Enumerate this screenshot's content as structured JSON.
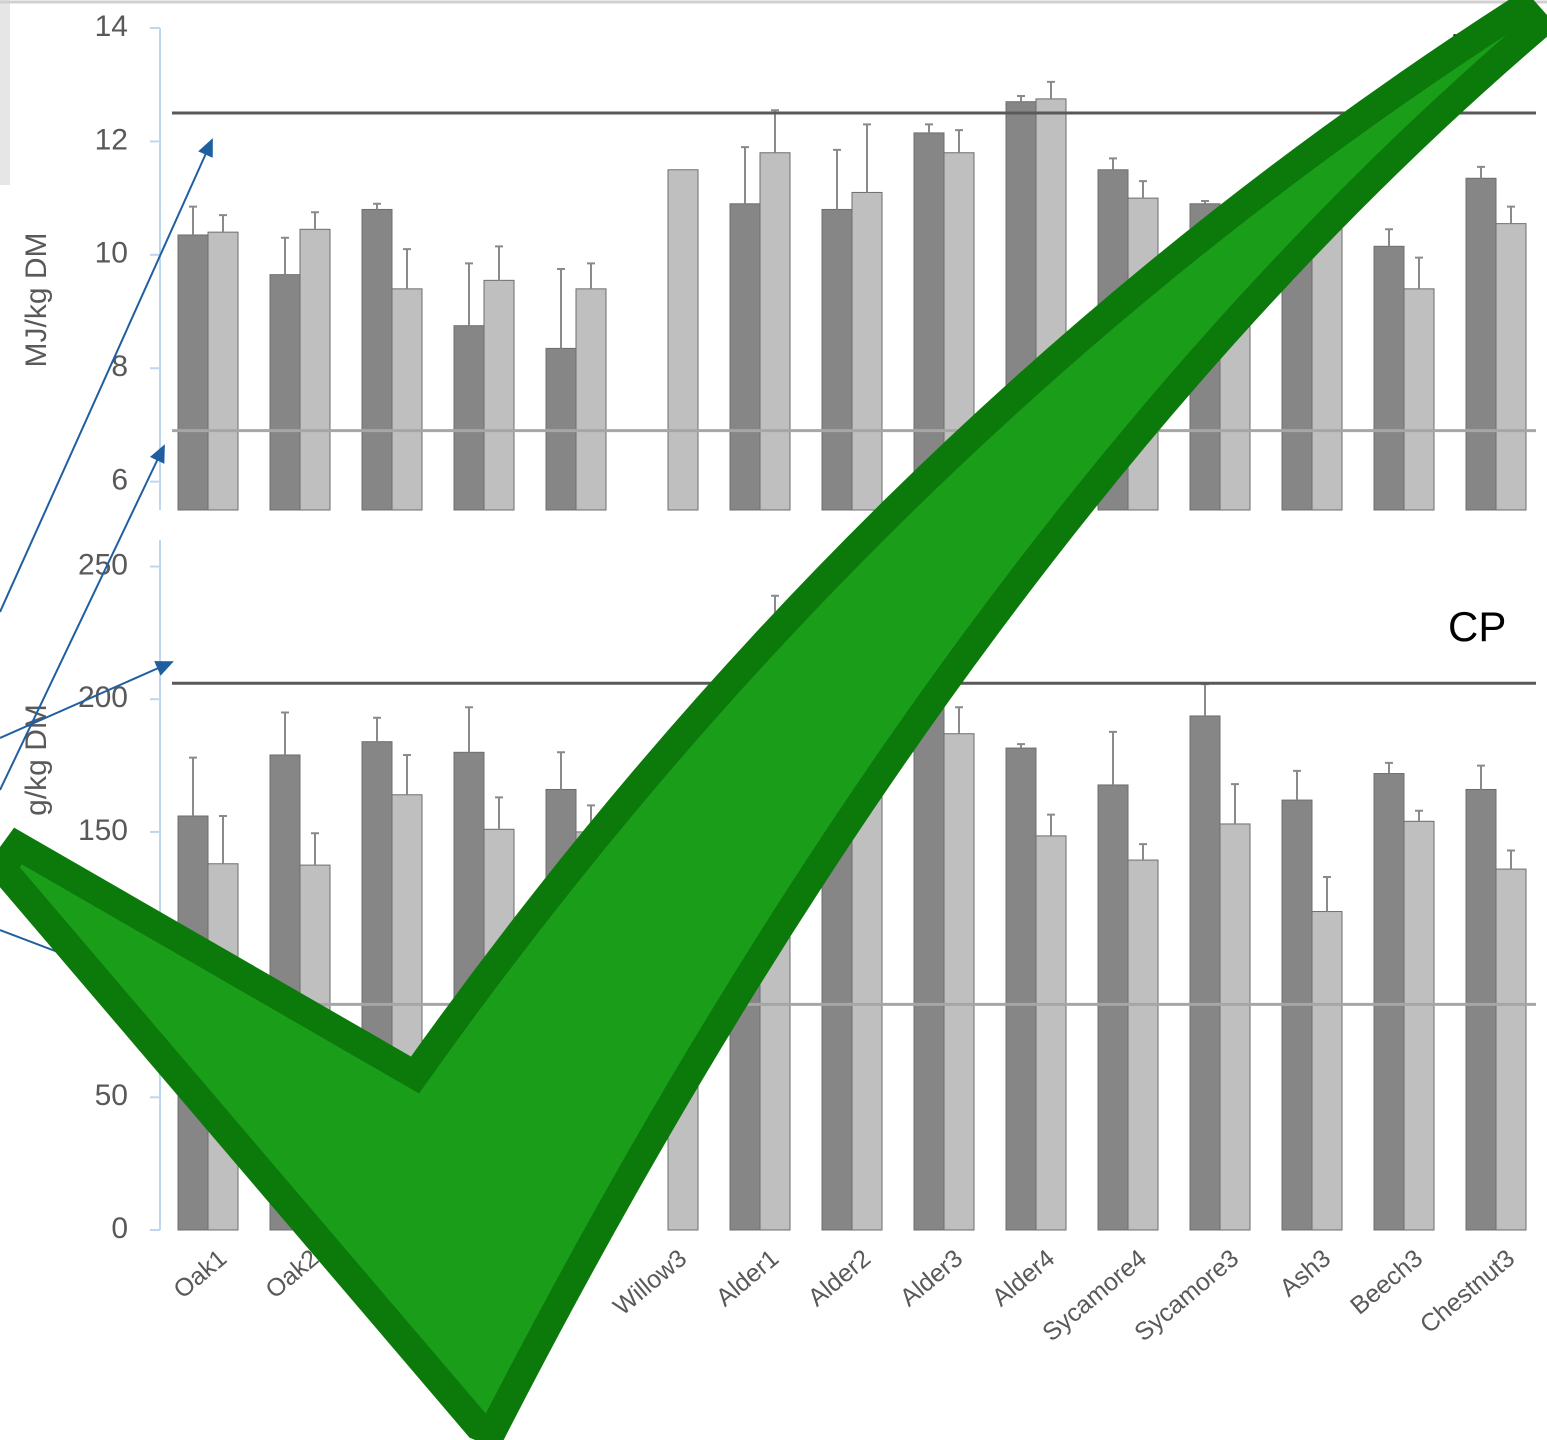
{
  "chart_data": [
    {
      "type": "bar",
      "title": "ME",
      "y_label": "MJ/kg DM",
      "ylim": [
        5.5,
        14
      ],
      "yticks": [
        6,
        8,
        10,
        12,
        14
      ],
      "hlines": [
        {
          "value": 12.5,
          "color": "#595959"
        },
        {
          "value": 6.9,
          "color": "#a6a6a6"
        }
      ],
      "series": [
        {
          "color": "#868686",
          "values": [
            10.35,
            9.65,
            10.8,
            8.75,
            8.35,
            null,
            10.9,
            10.8,
            12.15,
            12.7,
            11.5,
            10.9,
            10.7,
            10.15,
            11.35
          ],
          "errors": [
            0.5,
            0.65,
            0.1,
            1.1,
            1.4,
            null,
            1.0,
            1.05,
            0.15,
            0.1,
            0.2,
            0.05,
            0.3,
            0.3,
            0.2
          ]
        },
        {
          "color": "#bfbfbf",
          "values": [
            10.4,
            10.45,
            9.4,
            9.55,
            9.4,
            11.5,
            11.8,
            11.1,
            11.8,
            12.75,
            11.0,
            10.5,
            11.0,
            9.4,
            10.55
          ],
          "errors": [
            0.3,
            0.3,
            0.7,
            0.6,
            0.45,
            null,
            0.75,
            1.2,
            0.4,
            0.3,
            0.3,
            0.3,
            0.3,
            0.55,
            0.3
          ]
        }
      ]
    },
    {
      "type": "bar",
      "title": "CP",
      "y_label": "g/kg DM",
      "categories": [
        "Oak1",
        "Oak2",
        "Oak3",
        "Willow1",
        "Willow2",
        "Willow3",
        "Alder1",
        "Alder2",
        "Alder3",
        "Alder4",
        "Sycamore4",
        "Sycamore3",
        "Ash3",
        "Beech3",
        "Chestnut3"
      ],
      "ylim": [
        0,
        260
      ],
      "yticks": [
        0,
        50,
        100,
        150,
        200,
        250
      ],
      "hlines": [
        {
          "value": 206,
          "color": "#595959"
        },
        {
          "value": 85,
          "color": "#a6a6a6"
        }
      ],
      "series": [
        {
          "color": "#868686",
          "values": [
            156,
            179,
            184,
            180,
            166,
            null,
            190,
            175,
            200,
            181.6,
            167.7,
            193.7,
            162,
            172,
            166
          ],
          "errors": [
            22,
            16,
            9,
            17,
            14,
            null,
            15,
            10,
            8,
            1.5,
            20,
            12,
            11,
            4,
            9
          ]
        },
        {
          "color": "#bfbfbf",
          "values": [
            138,
            137.5,
            164,
            151,
            150,
            155,
            215,
            168.5,
            187,
            148.5,
            139.4,
            153,
            120,
            154,
            136
          ],
          "errors": [
            18,
            12,
            15,
            12,
            10,
            null,
            24,
            10,
            10,
            8,
            6,
            15,
            13,
            4,
            7
          ]
        }
      ]
    }
  ]
}
